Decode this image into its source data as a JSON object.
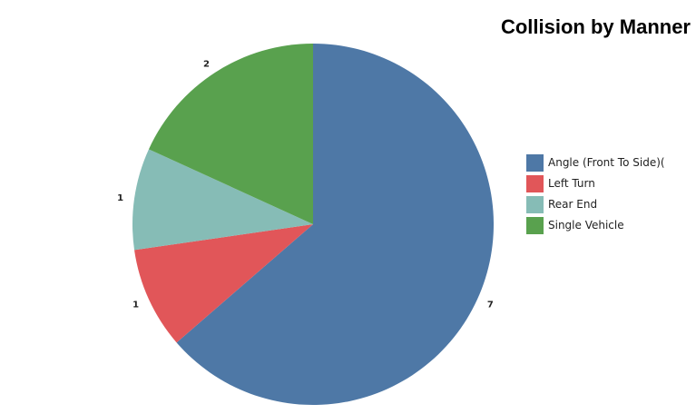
{
  "chart_data": {
    "type": "pie",
    "title": "Collision by Manner",
    "categories": [
      "Angle (Front To Side)(",
      "Left Turn",
      "Rear End",
      "Single Vehicle"
    ],
    "values": [
      7,
      1,
      1,
      2
    ],
    "colors": [
      "#4e78a6",
      "#e15659",
      "#86bcb6",
      "#59a14e"
    ],
    "legend_position": "right",
    "start_angle_deg": 0,
    "direction": "clockwise"
  }
}
